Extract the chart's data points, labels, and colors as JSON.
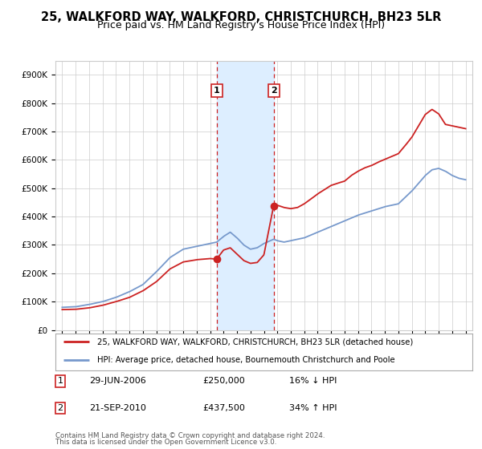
{
  "title": "25, WALKFORD WAY, WALKFORD, CHRISTCHURCH, BH23 5LR",
  "subtitle": "Price paid vs. HM Land Registry's House Price Index (HPI)",
  "ylim": [
    0,
    950000
  ],
  "yticks": [
    0,
    100000,
    200000,
    300000,
    400000,
    500000,
    600000,
    700000,
    800000,
    900000
  ],
  "ytick_labels": [
    "£0",
    "£100K",
    "£200K",
    "£300K",
    "£400K",
    "£500K",
    "£600K",
    "£700K",
    "£800K",
    "£900K"
  ],
  "xlim_start": 1994.5,
  "xlim_end": 2025.5,
  "hpi_color": "#7799cc",
  "price_color": "#cc2222",
  "sale1_x": 2006.49,
  "sale1_y": 250000,
  "sale2_x": 2010.72,
  "sale2_y": 437500,
  "shade_color": "#ddeeff",
  "legend_line1": "25, WALKFORD WAY, WALKFORD, CHRISTCHURCH, BH23 5LR (detached house)",
  "legend_line2": "HPI: Average price, detached house, Bournemouth Christchurch and Poole",
  "footnote_line1": "Contains HM Land Registry data © Crown copyright and database right 2024.",
  "footnote_line2": "This data is licensed under the Open Government Licence v3.0.",
  "table_row1": [
    "1",
    "29-JUN-2006",
    "£250,000",
    "16% ↓ HPI"
  ],
  "table_row2": [
    "2",
    "21-SEP-2010",
    "£437,500",
    "34% ↑ HPI"
  ],
  "background_color": "#ffffff",
  "grid_color": "#cccccc",
  "title_fontsize": 10.5,
  "subtitle_fontsize": 9
}
